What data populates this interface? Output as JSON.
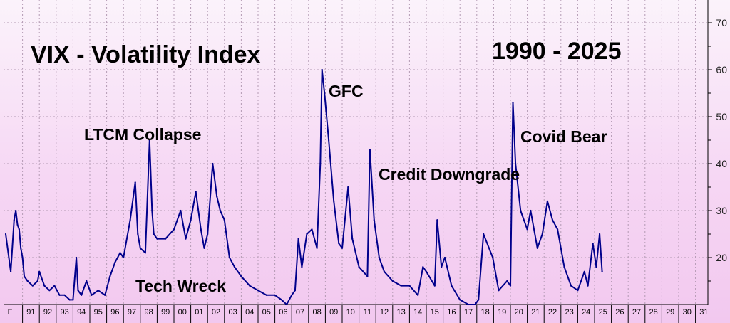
{
  "chart_data": {
    "type": "line",
    "title": "VIX - Volatility Index",
    "subtitle": "1990 - 2025",
    "xlabel": "",
    "ylabel": "",
    "ylim": [
      10,
      72
    ],
    "y_ticks": [
      "20",
      "30",
      "40",
      "50",
      "60",
      "70"
    ],
    "x_ticks": [
      "F",
      "91",
      "92",
      "93",
      "94",
      "95",
      "96",
      "97",
      "98",
      "99",
      "00",
      "01",
      "02",
      "03",
      "04",
      "05",
      "06",
      "07",
      "08",
      "09",
      "10",
      "11",
      "12",
      "13",
      "14",
      "15",
      "16",
      "17",
      "18",
      "19",
      "20",
      "21",
      "22",
      "23",
      "24",
      "25",
      "26",
      "27",
      "28",
      "29",
      "30",
      "31"
    ],
    "grid": true,
    "line_color": "#00008b",
    "series": [
      {
        "name": "",
        "x": [
          1990.0,
          1990.3,
          1990.5,
          1990.6,
          1990.7,
          1990.8,
          1990.9,
          1991.0,
          1991.1,
          1991.3,
          1991.6,
          1991.9,
          1992.0,
          1992.3,
          1992.6,
          1992.9,
          1993.2,
          1993.5,
          1993.8,
          1994.0,
          1994.2,
          1994.3,
          1994.5,
          1994.8,
          1995.1,
          1995.5,
          1995.9,
          1996.2,
          1996.5,
          1996.8,
          1997.0,
          1997.4,
          1997.7,
          1997.85,
          1998.0,
          1998.3,
          1998.55,
          1998.7,
          1998.8,
          1999.0,
          1999.5,
          2000.0,
          2000.4,
          2000.7,
          2001.0,
          2001.3,
          2001.6,
          2001.8,
          2002.0,
          2002.3,
          2002.55,
          2002.75,
          2003.0,
          2003.3,
          2003.6,
          2004.0,
          2004.5,
          2005.0,
          2005.5,
          2006.0,
          2006.4,
          2006.7,
          2007.0,
          2007.2,
          2007.4,
          2007.6,
          2007.9,
          2008.2,
          2008.5,
          2008.7,
          2008.8,
          2008.95,
          2009.2,
          2009.5,
          2009.8,
          2010.0,
          2010.35,
          2010.6,
          2011.0,
          2011.5,
          2011.65,
          2011.9,
          2012.2,
          2012.5,
          2013.0,
          2013.5,
          2014.0,
          2014.5,
          2014.8,
          2015.0,
          2015.5,
          2015.65,
          2015.9,
          2016.1,
          2016.5,
          2017.0,
          2017.5,
          2017.9,
          2018.1,
          2018.4,
          2018.95,
          2019.3,
          2019.8,
          2020.0,
          2020.15,
          2020.3,
          2020.6,
          2021.0,
          2021.2,
          2021.6,
          2021.9,
          2022.2,
          2022.5,
          2022.8,
          2023.2,
          2023.6,
          2024.0,
          2024.4,
          2024.6,
          2024.9,
          2025.1,
          2025.3,
          2025.45
        ],
        "values": [
          25,
          17,
          28,
          30,
          27,
          26,
          22,
          20,
          16,
          15,
          14,
          15,
          17,
          14,
          13,
          14,
          12,
          12,
          11,
          11,
          20,
          13,
          12,
          15,
          12,
          13,
          12,
          16,
          19,
          21,
          20,
          28,
          36,
          25,
          22,
          21,
          45,
          30,
          25,
          24,
          24,
          26,
          30,
          24,
          28,
          34,
          26,
          22,
          25,
          40,
          33,
          30,
          28,
          20,
          18,
          16,
          14,
          13,
          12,
          12,
          11,
          10,
          12,
          13,
          24,
          18,
          25,
          26,
          22,
          40,
          60,
          55,
          45,
          32,
          23,
          22,
          35,
          24,
          18,
          16,
          43,
          28,
          20,
          17,
          15,
          14,
          14,
          12,
          18,
          17,
          14,
          28,
          18,
          20,
          14,
          11,
          10,
          10,
          11,
          25,
          20,
          13,
          15,
          14,
          53,
          40,
          30,
          26,
          30,
          22,
          25,
          32,
          28,
          26,
          18,
          14,
          13,
          17,
          14,
          23,
          18,
          25,
          17
        ]
      }
    ],
    "annotations": [
      {
        "text": "LTCM Collapse",
        "x": 1998.55
      },
      {
        "text": "Tech Wreck",
        "x": 2002.0
      },
      {
        "text": "GFC",
        "x": 2008.8
      },
      {
        "text": "Credit Downgrade",
        "x": 2011.65
      },
      {
        "text": "Covid Bear",
        "x": 2020.15
      }
    ]
  }
}
